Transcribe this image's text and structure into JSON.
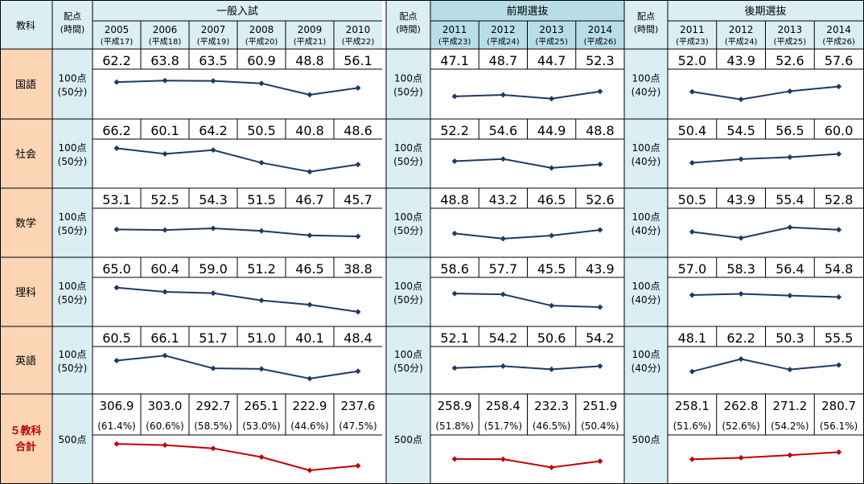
{
  "header": {
    "subject": "教科",
    "points_label": [
      "配点",
      "(時間)"
    ],
    "sections": [
      {
        "title": "一般入試",
        "years": [
          "2005",
          "2006",
          "2007",
          "2008",
          "2009",
          "2010"
        ],
        "eras": [
          "(平成17)",
          "(平成18)",
          "(平成19)",
          "(平成20)",
          "(平成21)",
          "(平成22)"
        ]
      },
      {
        "title": "前期選抜",
        "years": [
          "2011",
          "2012",
          "2013",
          "2014"
        ],
        "eras": [
          "(平成23)",
          "(平成24)",
          "(平成25)",
          "(平成26)"
        ]
      },
      {
        "title": "後期選抜",
        "years": [
          "2011",
          "2012",
          "2013",
          "2014"
        ],
        "eras": [
          "(平成23)",
          "(平成24)",
          "(平成25)",
          "(平成26)"
        ]
      }
    ]
  },
  "rows": [
    {
      "subject": "国語",
      "points": [
        [
          "100点",
          "(50分)"
        ],
        [
          "100点",
          "(50分)"
        ],
        [
          "100点",
          "(40分)"
        ]
      ]
    },
    {
      "subject": "社会",
      "points": [
        [
          "100点",
          "(50分)"
        ],
        [
          "100点",
          "(50分)"
        ],
        [
          "100点",
          "(40分)"
        ]
      ]
    },
    {
      "subject": "数学",
      "points": [
        [
          "100点",
          "(50分)"
        ],
        [
          "100点",
          "(50分)"
        ],
        [
          "100点",
          "(40分)"
        ]
      ]
    },
    {
      "subject": "理科",
      "points": [
        [
          "100点",
          "(50分)"
        ],
        [
          "100点",
          "(50分)"
        ],
        [
          "100点",
          "(40分)"
        ]
      ]
    },
    {
      "subject": "英語",
      "points": [
        [
          "100点",
          "(50分)"
        ],
        [
          "100点",
          "(50分)"
        ],
        [
          "100点",
          "(40分)"
        ]
      ]
    },
    {
      "subject": [
        "５教科",
        "合計"
      ],
      "points": [
        [
          "500点"
        ],
        [
          "500点"
        ],
        [
          "500点"
        ]
      ]
    }
  ],
  "colors": {
    "subject_bg": "#fcd5b4",
    "points_bg": "#daeef3",
    "zenki_header_bg": "#b7dee8",
    "line": "#1f3864",
    "total_line": "#c00000",
    "border": "#000000"
  },
  "chart_data": [
    {
      "type": "line",
      "section": "一般入試",
      "categories": [
        "2005",
        "2006",
        "2007",
        "2008",
        "2009",
        "2010"
      ],
      "series": [
        {
          "name": "国語",
          "values": [
            "62.2",
            "63.8",
            "63.5",
            "60.9",
            "48.8",
            "56.1"
          ]
        },
        {
          "name": "社会",
          "values": [
            "66.2",
            "60.1",
            "64.2",
            "50.5",
            "40.8",
            "48.6"
          ]
        },
        {
          "name": "数学",
          "values": [
            "53.1",
            "52.5",
            "54.3",
            "51.5",
            "46.7",
            "45.7"
          ]
        },
        {
          "name": "理科",
          "values": [
            "65.0",
            "60.4",
            "59.0",
            "51.2",
            "46.5",
            "38.8"
          ]
        },
        {
          "name": "英語",
          "values": [
            "60.5",
            "66.1",
            "51.7",
            "51.0",
            "40.1",
            "48.4"
          ]
        },
        {
          "name": [
            "５教科",
            "合計"
          ],
          "values": [
            "306.9",
            "303.0",
            "292.7",
            "265.1",
            "222.9",
            "237.6"
          ],
          "percents": [
            "(61.4%)",
            "(60.6%)",
            "(58.5%)",
            "(53.0%)",
            "(44.6%)",
            "(47.5%)"
          ]
        }
      ]
    },
    {
      "type": "line",
      "section": "前期選抜",
      "categories": [
        "2011",
        "2012",
        "2013",
        "2014"
      ],
      "series": [
        {
          "name": "国語",
          "values": [
            "47.1",
            "48.7",
            "44.7",
            "52.3"
          ]
        },
        {
          "name": "社会",
          "values": [
            "52.2",
            "54.6",
            "44.9",
            "48.8"
          ]
        },
        {
          "name": "数学",
          "values": [
            "48.8",
            "43.2",
            "46.5",
            "52.6"
          ]
        },
        {
          "name": "理科",
          "values": [
            "58.6",
            "57.7",
            "45.5",
            "43.9"
          ]
        },
        {
          "name": "英語",
          "values": [
            "52.1",
            "54.2",
            "50.6",
            "54.2"
          ]
        },
        {
          "name": [
            "５教科",
            "合計"
          ],
          "values": [
            "258.9",
            "258.4",
            "232.3",
            "251.9"
          ],
          "percents": [
            "(51.8%)",
            "(51.7%)",
            "(46.5%)",
            "(50.4%)"
          ]
        }
      ]
    },
    {
      "type": "line",
      "section": "後期選抜",
      "categories": [
        "2011",
        "2012",
        "2013",
        "2014"
      ],
      "series": [
        {
          "name": "国語",
          "values": [
            "52.0",
            "43.9",
            "52.6",
            "57.6"
          ]
        },
        {
          "name": "社会",
          "values": [
            "50.4",
            "54.5",
            "56.5",
            "60.0"
          ]
        },
        {
          "name": "数学",
          "values": [
            "50.5",
            "43.9",
            "55.4",
            "52.8"
          ]
        },
        {
          "name": "理科",
          "values": [
            "57.0",
            "58.3",
            "56.4",
            "54.8"
          ]
        },
        {
          "name": "英語",
          "values": [
            "48.1",
            "62.2",
            "50.3",
            "55.5"
          ]
        },
        {
          "name": [
            "５教科",
            "合計"
          ],
          "values": [
            "258.1",
            "262.8",
            "271.2",
            "280.7"
          ],
          "percents": [
            "(51.6%)",
            "(52.6%)",
            "(54.2%)",
            "(56.1%)"
          ]
        }
      ]
    }
  ]
}
